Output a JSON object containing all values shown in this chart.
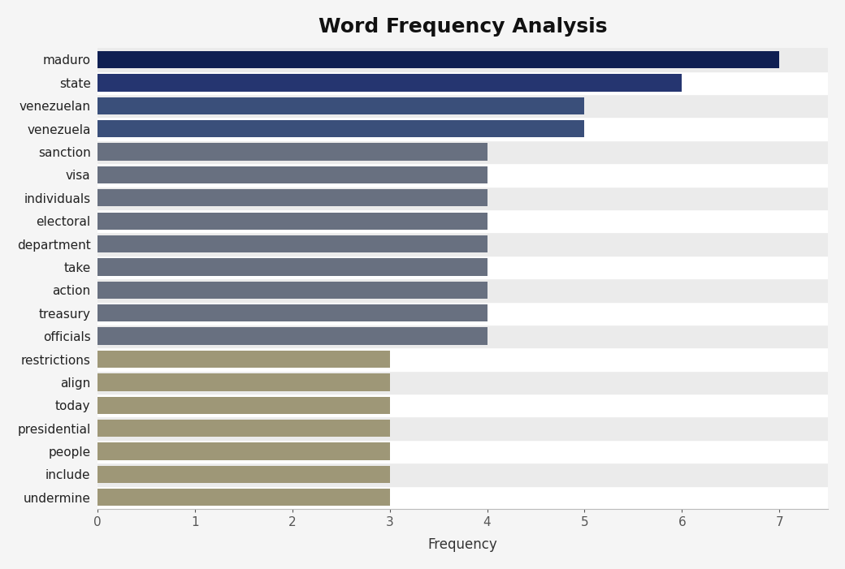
{
  "title": "Word Frequency Analysis",
  "title_fontsize": 18,
  "title_fontweight": "bold",
  "xlabel": "Frequency",
  "xlabel_fontsize": 12,
  "categories": [
    "undermine",
    "include",
    "people",
    "presidential",
    "today",
    "align",
    "restrictions",
    "officials",
    "treasury",
    "action",
    "take",
    "department",
    "electoral",
    "individuals",
    "visa",
    "sanction",
    "venezuela",
    "venezuelan",
    "state",
    "maduro"
  ],
  "values": [
    3,
    3,
    3,
    3,
    3,
    3,
    3,
    4,
    4,
    4,
    4,
    4,
    4,
    4,
    4,
    4,
    5,
    5,
    6,
    7
  ],
  "bar_colors": [
    "#9e9777",
    "#9e9777",
    "#9e9777",
    "#9e9777",
    "#9e9777",
    "#9e9777",
    "#9e9777",
    "#687080",
    "#687080",
    "#687080",
    "#687080",
    "#687080",
    "#687080",
    "#687080",
    "#687080",
    "#687080",
    "#3a4f7a",
    "#3a4f7a",
    "#253570",
    "#0f1f52"
  ],
  "plot_bg_color": "#f5f5f5",
  "fig_bg_color": "#f5f5f5",
  "xlim": [
    0,
    7.5
  ],
  "xticks": [
    0,
    1,
    2,
    3,
    4,
    5,
    6,
    7
  ],
  "bar_height": 0.75,
  "tick_fontsize": 11,
  "label_fontsize": 11,
  "row_colors": [
    "#ffffff",
    "#ebebeb"
  ]
}
